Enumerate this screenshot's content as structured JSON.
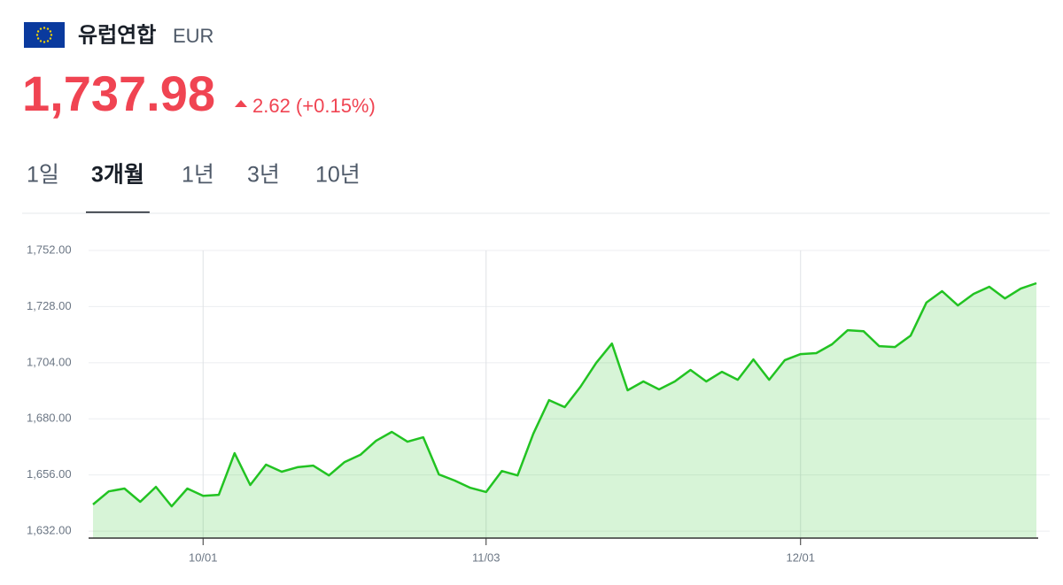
{
  "header": {
    "name": "유럽연합",
    "currency": "EUR"
  },
  "price": {
    "value": "1,737.98",
    "change": "2.62 (+0.15%)"
  },
  "tabs": {
    "items": [
      "1일",
      "3개월",
      "1년",
      "3년",
      "10년"
    ],
    "selected": 1
  },
  "chart_data": {
    "type": "area",
    "categories": [
      null,
      null,
      null,
      null,
      null,
      null,
      null,
      "10/01",
      null,
      null,
      null,
      null,
      null,
      null,
      null,
      null,
      null,
      null,
      null,
      null,
      null,
      null,
      null,
      null,
      null,
      "11/03",
      null,
      null,
      null,
      null,
      null,
      null,
      null,
      null,
      null,
      null,
      null,
      null,
      null,
      null,
      null,
      null,
      null,
      null,
      null,
      "12/01",
      null,
      null,
      null,
      null,
      null,
      null,
      null,
      null,
      null,
      null,
      null,
      null,
      null,
      null,
      null
    ],
    "series": [
      {
        "name": "EUR",
        "color": "#22c322",
        "values": [
          1643.4,
          1649.0,
          1650.2,
          1644.5,
          1650.9,
          1642.6,
          1650.2,
          1647.1,
          1647.5,
          1665.3,
          1651.7,
          1660.4,
          1657.4,
          1659.3,
          1660.0,
          1655.8,
          1661.5,
          1664.6,
          1670.6,
          1674.4,
          1670.2,
          1672.1,
          1656.2,
          1653.6,
          1650.5,
          1648.7,
          1657.7,
          1655.8,
          1673.6,
          1688.0,
          1685.0,
          1693.7,
          1703.9,
          1712.2,
          1692.2,
          1696.0,
          1692.6,
          1696.0,
          1700.9,
          1696.0,
          1700.1,
          1696.7,
          1705.4,
          1696.7,
          1705.1,
          1707.7,
          1708.1,
          1711.9,
          1717.9,
          1717.5,
          1711.1,
          1710.7,
          1715.6,
          1729.7,
          1734.6,
          1728.5,
          1733.4,
          1736.5,
          1731.5,
          1735.7,
          1738.0
        ]
      }
    ],
    "ylim": [
      1629,
      1752
    ],
    "yticks": [
      {
        "value": 1632,
        "label": "1,632.00"
      },
      {
        "value": 1656,
        "label": "1,656.00"
      },
      {
        "value": 1680,
        "label": "1,680.00"
      },
      {
        "value": 1704,
        "label": "1,704.00"
      },
      {
        "value": 1728,
        "label": "1,728.00"
      },
      {
        "value": 1752,
        "label": "1,752.00"
      }
    ],
    "grid": true
  }
}
